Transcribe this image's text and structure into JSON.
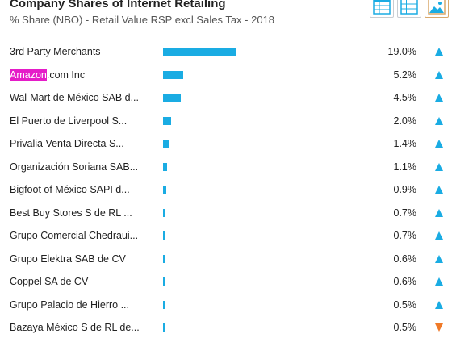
{
  "header": {
    "title": "Company Shares of Internet Retailing",
    "subtitle": "% Share (NBO) - Retail Value RSP excl Sales Tax - 2018"
  },
  "toolbar": {
    "icons": [
      "table-icon",
      "grid-icon",
      "image-icon"
    ]
  },
  "colors": {
    "bar": "#1aace3",
    "up": "#1aace3",
    "down": "#f07a28",
    "highlight": "#e51cc8"
  },
  "chart_data": {
    "type": "bar",
    "orientation": "horizontal",
    "title": "Company Shares of Internet Retailing",
    "subtitle": "% Share (NBO) - Retail Value RSP excl Sales Tax - 2018",
    "xlim": [
      0,
      50
    ],
    "categories": [
      "3rd Party Merchants",
      "Amazon.com Inc",
      "Wal-Mart de México SAB d...",
      "El Puerto de Liverpool S...",
      "Privalia Venta Directa S...",
      "Organización Soriana SAB...",
      "Bigfoot of México SAPI d...",
      "Best Buy Stores S de RL ...",
      "Grupo Comercial Chedraui...",
      "Grupo Elektra SAB de CV",
      "Coppel SA de CV",
      "Grupo Palacio de Hierro ...",
      "Bazaya México S de RL de..."
    ],
    "values": [
      19.0,
      5.2,
      4.5,
      2.0,
      1.4,
      1.1,
      0.9,
      0.7,
      0.7,
      0.6,
      0.6,
      0.5,
      0.5
    ],
    "labels": [
      "19.0%",
      "5.2%",
      "4.5%",
      "2.0%",
      "1.4%",
      "1.1%",
      "0.9%",
      "0.7%",
      "0.7%",
      "0.6%",
      "0.6%",
      "0.5%",
      "0.5%"
    ],
    "trends": [
      "up",
      "up",
      "up",
      "up",
      "up",
      "up",
      "up",
      "up",
      "up",
      "up",
      "up",
      "up",
      "down"
    ]
  }
}
